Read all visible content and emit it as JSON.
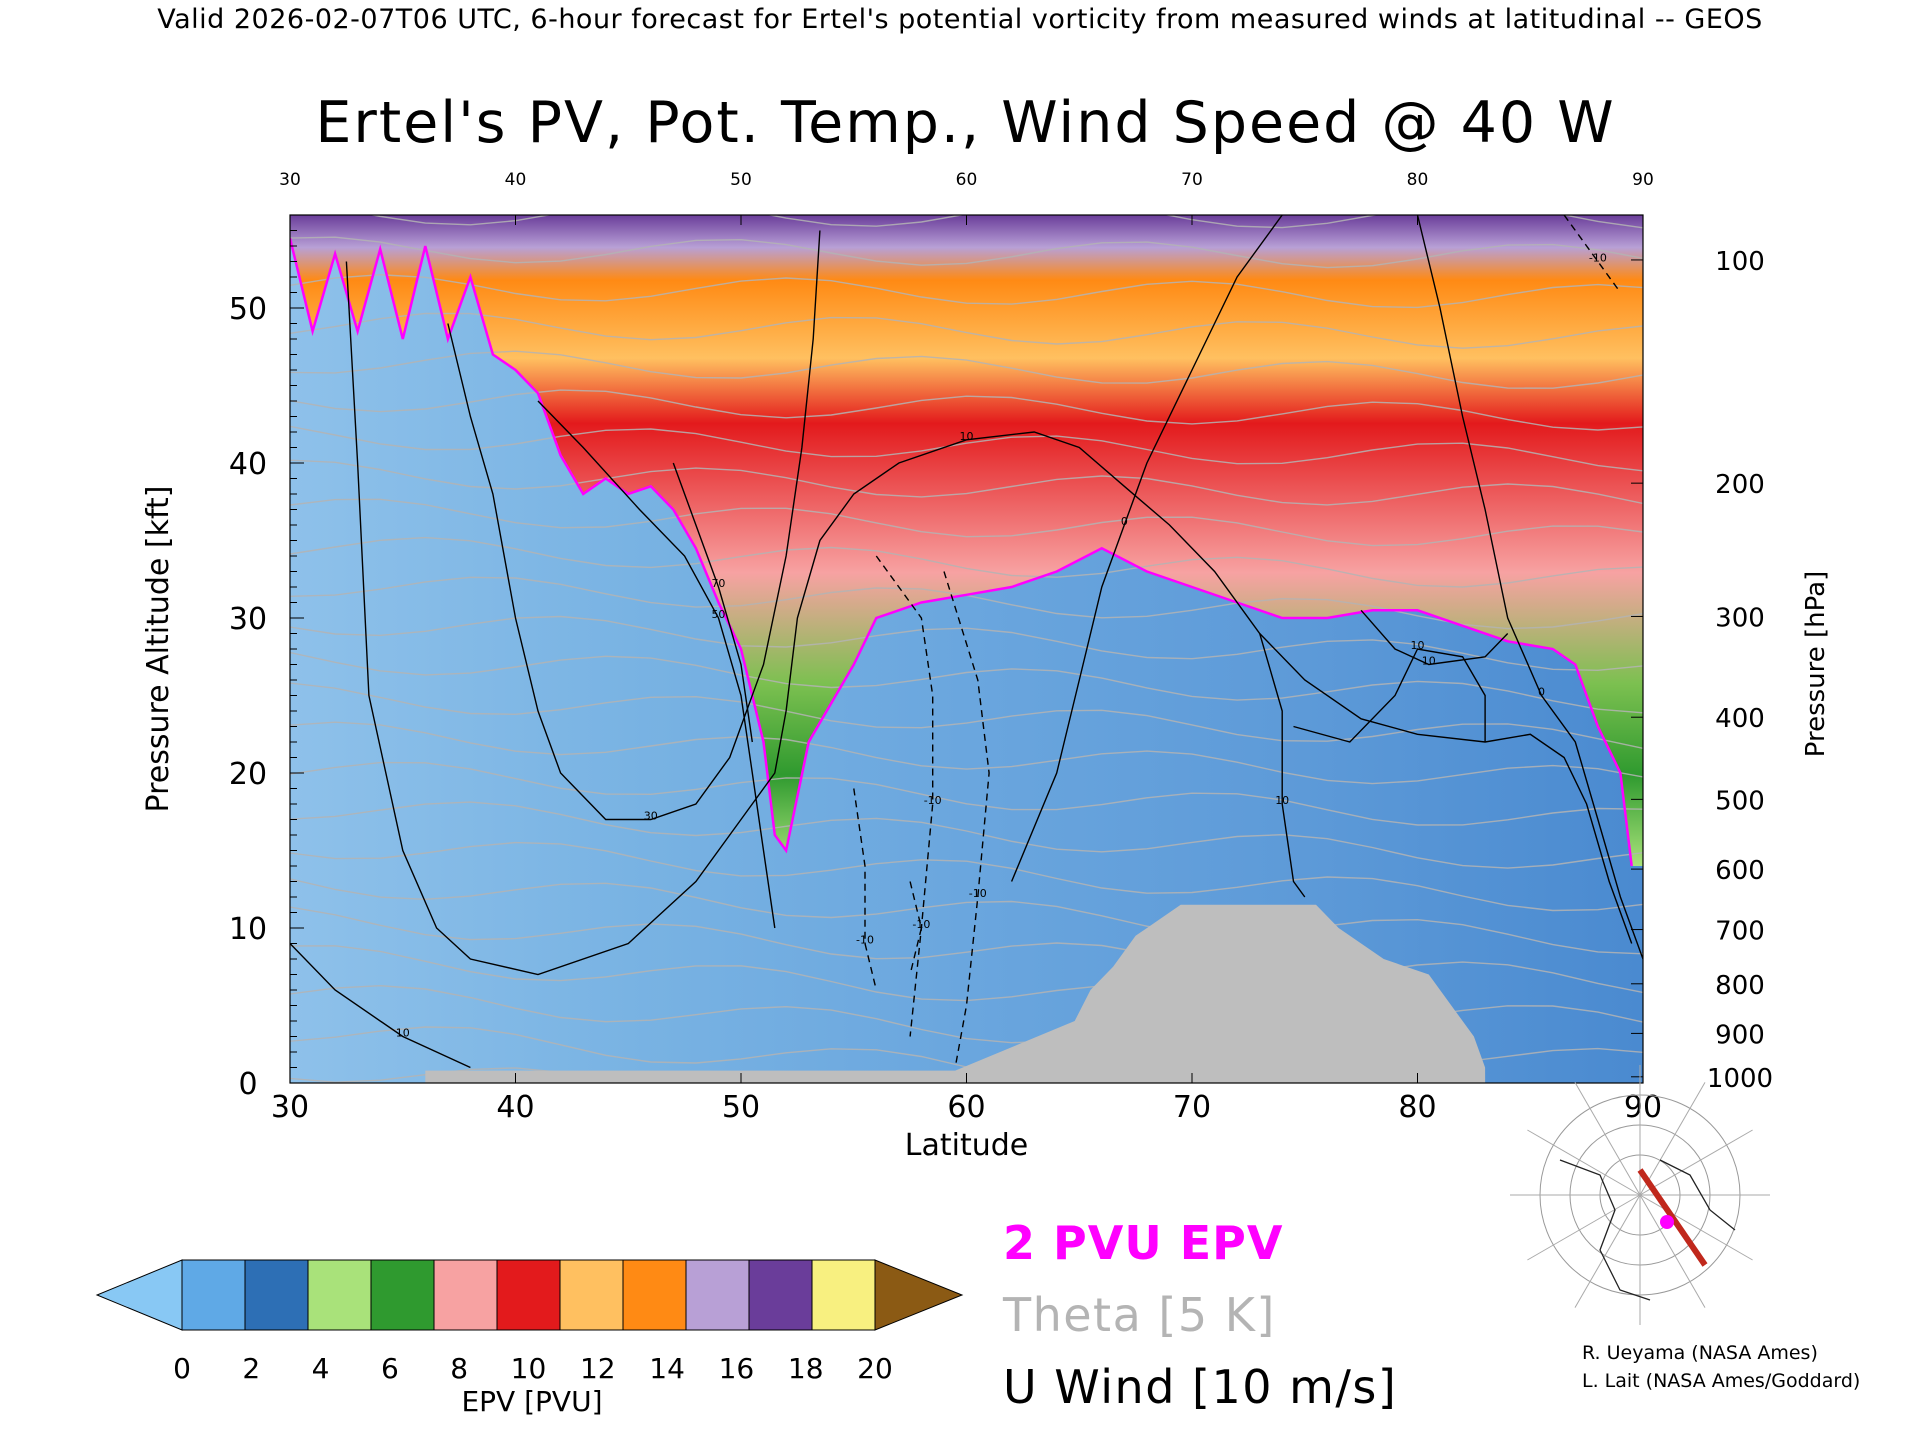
{
  "header": "Valid 2026-02-07T06 UTC, 6-hour forecast for Ertel's potential vorticity from measured winds at latitudinal -- GEOS",
  "chart_data": {
    "type": "heatmap",
    "title": "Ertel's PV, Pot. Temp., Wind Speed @ 40 W",
    "xlabel": "Latitude",
    "ylabel": "Pressure Altitude [kft]",
    "y2label": "Pressure [hPa]",
    "xlim": [
      30,
      90
    ],
    "ylim": [
      0,
      56
    ],
    "x_ticks": [
      30,
      40,
      50,
      60,
      70,
      80,
      90
    ],
    "top_x_ticks": [
      30,
      40,
      50,
      60,
      70,
      80,
      90
    ],
    "y_ticks": [
      0,
      10,
      20,
      30,
      40,
      50
    ],
    "pressure_ticks": [
      {
        "hPa": "100",
        "kft": 53.1
      },
      {
        "hPa": "200",
        "kft": 38.7
      },
      {
        "hPa": "300",
        "kft": 30.1
      },
      {
        "hPa": "400",
        "kft": 23.6
      },
      {
        "hPa": "500",
        "kft": 18.3
      },
      {
        "hPa": "600",
        "kft": 13.8
      },
      {
        "hPa": "700",
        "kft": 9.9
      },
      {
        "hPa": "800",
        "kft": 6.4
      },
      {
        "hPa": "900",
        "kft": 3.2
      },
      {
        "hPa": "1000",
        "kft": 0.4
      }
    ],
    "tropopause_2pvu_kft": [
      {
        "lat": 30,
        "kft": 54.5
      },
      {
        "lat": 31,
        "kft": 48.5
      },
      {
        "lat": 32,
        "kft": 53.5
      },
      {
        "lat": 33,
        "kft": 48.5
      },
      {
        "lat": 34,
        "kft": 53.8
      },
      {
        "lat": 35,
        "kft": 48
      },
      {
        "lat": 36,
        "kft": 54
      },
      {
        "lat": 37,
        "kft": 48
      },
      {
        "lat": 38,
        "kft": 52
      },
      {
        "lat": 39,
        "kft": 47
      },
      {
        "lat": 40,
        "kft": 46
      },
      {
        "lat": 41,
        "kft": 44.5
      },
      {
        "lat": 42,
        "kft": 40.5
      },
      {
        "lat": 43,
        "kft": 38
      },
      {
        "lat": 44,
        "kft": 39
      },
      {
        "lat": 45,
        "kft": 38
      },
      {
        "lat": 46,
        "kft": 38.5
      },
      {
        "lat": 47,
        "kft": 37
      },
      {
        "lat": 48,
        "kft": 34.5
      },
      {
        "lat": 49,
        "kft": 31
      },
      {
        "lat": 50,
        "kft": 28
      },
      {
        "lat": 51,
        "kft": 22
      },
      {
        "lat": 51.5,
        "kft": 16
      },
      {
        "lat": 52,
        "kft": 15
      },
      {
        "lat": 53,
        "kft": 22
      },
      {
        "lat": 54,
        "kft": 24.5
      },
      {
        "lat": 55,
        "kft": 27
      },
      {
        "lat": 56,
        "kft": 30
      },
      {
        "lat": 58,
        "kft": 31
      },
      {
        "lat": 60,
        "kft": 31.5
      },
      {
        "lat": 62,
        "kft": 32
      },
      {
        "lat": 64,
        "kft": 33
      },
      {
        "lat": 66,
        "kft": 34.5
      },
      {
        "lat": 68,
        "kft": 33
      },
      {
        "lat": 70,
        "kft": 32
      },
      {
        "lat": 72,
        "kft": 31
      },
      {
        "lat": 74,
        "kft": 30
      },
      {
        "lat": 76,
        "kft": 30
      },
      {
        "lat": 78,
        "kft": 30.5
      },
      {
        "lat": 80,
        "kft": 30.5
      },
      {
        "lat": 82,
        "kft": 29.5
      },
      {
        "lat": 84,
        "kft": 28.5
      },
      {
        "lat": 86,
        "kft": 28
      },
      {
        "lat": 87,
        "kft": 27
      },
      {
        "lat": 88,
        "kft": 23
      },
      {
        "lat": 89,
        "kft": 20
      },
      {
        "lat": 89.5,
        "kft": 14
      }
    ],
    "terrain_kft": [
      {
        "lat": 36,
        "kft": 0.8
      },
      {
        "lat": 59.5,
        "kft": 0.8
      },
      {
        "lat": 64.8,
        "kft": 4
      },
      {
        "lat": 65.5,
        "kft": 6
      },
      {
        "lat": 66.5,
        "kft": 7.5
      },
      {
        "lat": 67.5,
        "kft": 9.5
      },
      {
        "lat": 69.5,
        "kft": 11.5
      },
      {
        "lat": 75.5,
        "kft": 11.5
      },
      {
        "lat": 76.5,
        "kft": 10
      },
      {
        "lat": 78.5,
        "kft": 8
      },
      {
        "lat": 80.5,
        "kft": 7
      },
      {
        "lat": 81.5,
        "kft": 5
      },
      {
        "lat": 82.5,
        "kft": 3
      },
      {
        "lat": 83,
        "kft": 1
      }
    ],
    "u_wind_contours": [
      {
        "label": "10",
        "points": [
          [
            30,
            9
          ],
          [
            32,
            6
          ],
          [
            35,
            3
          ],
          [
            38,
            1
          ]
        ]
      },
      {
        "label": "10",
        "points": [
          [
            32.5,
            53
          ],
          [
            33,
            40
          ],
          [
            33.5,
            25
          ],
          [
            35,
            15
          ],
          [
            36.5,
            10
          ],
          [
            38,
            8
          ],
          [
            41,
            7
          ],
          [
            45,
            9
          ],
          [
            48,
            13
          ],
          [
            50,
            17
          ],
          [
            51.5,
            20
          ],
          [
            52,
            24
          ],
          [
            52.5,
            30
          ],
          [
            53.5,
            35
          ],
          [
            55,
            38
          ],
          [
            57,
            40
          ],
          [
            60,
            41.5
          ],
          [
            63,
            42
          ],
          [
            65,
            41
          ],
          [
            67,
            38.5
          ],
          [
            69,
            36
          ],
          [
            71,
            33
          ],
          [
            73,
            29
          ],
          [
            75,
            26
          ],
          [
            77.5,
            23.5
          ],
          [
            80,
            22.5
          ],
          [
            83,
            22
          ],
          [
            85,
            22.5
          ],
          [
            86.5,
            21
          ],
          [
            87.5,
            18
          ],
          [
            88.5,
            13
          ],
          [
            89.5,
            9
          ]
        ]
      },
      {
        "label": "30",
        "points": [
          [
            37,
            49
          ],
          [
            38,
            43
          ],
          [
            39,
            38
          ],
          [
            40,
            30
          ],
          [
            41,
            24
          ],
          [
            42,
            20
          ],
          [
            44,
            17
          ],
          [
            46,
            17
          ],
          [
            48,
            18
          ],
          [
            49.5,
            21
          ],
          [
            51,
            27
          ],
          [
            52,
            34
          ],
          [
            52.7,
            41
          ],
          [
            53.2,
            48
          ],
          [
            53.5,
            55
          ]
        ]
      },
      {
        "label": "50",
        "points": [
          [
            41,
            44
          ],
          [
            43,
            41
          ],
          [
            45.5,
            37
          ],
          [
            47.5,
            34
          ],
          [
            49,
            30
          ],
          [
            50,
            25
          ],
          [
            50.5,
            20
          ],
          [
            51,
            15
          ],
          [
            51.5,
            10
          ]
        ]
      },
      {
        "label": "70",
        "points": [
          [
            47,
            40
          ],
          [
            48,
            36
          ],
          [
            49,
            32
          ],
          [
            50,
            27
          ],
          [
            50.5,
            22
          ]
        ]
      },
      {
        "label": "0",
        "points": [
          [
            62,
            13
          ],
          [
            64,
            20
          ],
          [
            65,
            26
          ],
          [
            66,
            32
          ],
          [
            67,
            36
          ],
          [
            68,
            40
          ],
          [
            70,
            46
          ],
          [
            72,
            52
          ],
          [
            74,
            56
          ]
        ]
      },
      {
        "label": "10",
        "points": [
          [
            73,
            29
          ],
          [
            74,
            24
          ],
          [
            74,
            18
          ],
          [
            74.5,
            13
          ],
          [
            75,
            12
          ]
        ]
      },
      {
        "label": "10",
        "points": [
          [
            74.5,
            23
          ],
          [
            77,
            22
          ],
          [
            79,
            25
          ],
          [
            80,
            28
          ],
          [
            82,
            27.5
          ],
          [
            83,
            25
          ],
          [
            83,
            22
          ]
        ]
      },
      {
        "label": "10",
        "points": [
          [
            77.5,
            30.5
          ],
          [
            79,
            28
          ],
          [
            80.5,
            27
          ],
          [
            83,
            27.5
          ],
          [
            84,
            29
          ]
        ]
      },
      {
        "label": "0",
        "points": [
          [
            80,
            56
          ],
          [
            81,
            50
          ],
          [
            82,
            43
          ],
          [
            83,
            37
          ],
          [
            84,
            30
          ],
          [
            85.5,
            25
          ],
          [
            87,
            22
          ],
          [
            88,
            17
          ],
          [
            89,
            12
          ],
          [
            90,
            8
          ]
        ]
      }
    ],
    "u_wind_negative_contours": [
      {
        "label": "-10",
        "points": [
          [
            56,
            34
          ],
          [
            58,
            30
          ],
          [
            58.5,
            25
          ],
          [
            58.5,
            18
          ],
          [
            58,
            10
          ],
          [
            57.5,
            3
          ]
        ]
      },
      {
        "label": "-10",
        "points": [
          [
            59,
            33
          ],
          [
            60.5,
            26
          ],
          [
            61,
            20
          ],
          [
            60.5,
            12
          ],
          [
            60,
            5
          ],
          [
            59.5,
            1
          ]
        ]
      },
      {
        "label": "-10",
        "points": [
          [
            55,
            19
          ],
          [
            55.5,
            14
          ],
          [
            55.5,
            9
          ],
          [
            56,
            6
          ]
        ]
      },
      {
        "label": "-10",
        "points": [
          [
            57.5,
            13
          ],
          [
            58,
            10
          ],
          [
            57.5,
            7
          ]
        ]
      },
      {
        "label": "-10",
        "points": [
          [
            86.5,
            56
          ],
          [
            88,
            53
          ],
          [
            89,
            51
          ]
        ]
      }
    ],
    "series": [
      {
        "name": "2 PVU EPV",
        "color": "#ff00ff"
      },
      {
        "name": "Theta [5 K]",
        "color": "#b4b4b4"
      },
      {
        "name": "U Wind [10 m/s]",
        "color": "#000000"
      }
    ],
    "colorbar": {
      "label": "EPV [PVU]",
      "ticks": [
        "0",
        "2",
        "4",
        "6",
        "8",
        "10",
        "12",
        "14",
        "16",
        "18",
        "20"
      ],
      "colors": [
        "#5fa9e6",
        "#2d6fb5",
        "#a9e27a",
        "#2f9a2f",
        "#f7a2a2",
        "#e31a1c",
        "#ffc060",
        "#ff8a14",
        "#b8a0d6",
        "#6a3d9a",
        "#f8f080"
      ],
      "under_color": "#88c8f4",
      "over_color": "#8b5a14"
    }
  },
  "legend_lines": [
    {
      "text": "2 PVU EPV",
      "color": "#ff00ff"
    },
    {
      "text": "Theta [5 K]",
      "color": "#b4b4b4"
    },
    {
      "text": "U Wind [10 m/s]",
      "color": "#000000"
    }
  ],
  "credits": [
    "R. Ueyama (NASA Ames)",
    "L. Lait (NASA Ames/Goddard)"
  ],
  "colors": {
    "terrain": "#bebebe",
    "epv_line": "#ff00ff",
    "theta": "#b4b4b4",
    "map_track": "#c0281c",
    "map_dot": "#ff00ff"
  }
}
